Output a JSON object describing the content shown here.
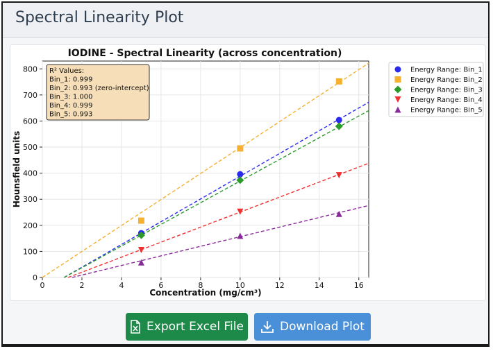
{
  "header": {
    "title": "Spectral Linearity Plot"
  },
  "buttons": {
    "export_label": "Export Excel File",
    "download_label": "Download Plot"
  },
  "icons": {
    "export": "excel-file-icon",
    "download": "download-icon"
  },
  "chart_data": {
    "type": "scatter",
    "title": "IODINE - Spectral Linearity (across concentration)",
    "xlabel": "Concentration (mg/cm³)",
    "ylabel": "Hounsfield units",
    "xlim": [
      0,
      16.5
    ],
    "ylim": [
      0,
      830
    ],
    "xticks": [
      0,
      2,
      4,
      6,
      8,
      10,
      12,
      14,
      16
    ],
    "yticks": [
      0,
      100,
      200,
      300,
      400,
      500,
      600,
      700,
      800
    ],
    "grid": true,
    "x": [
      5,
      10,
      15
    ],
    "series": [
      {
        "name": "Energy Range: Bin_1",
        "values": [
          170,
          396,
          604
        ],
        "color": "#2a2af0",
        "marker": "circle",
        "fit_line": [
          [
            1.1,
            0
          ],
          [
            16.5,
            672
          ]
        ]
      },
      {
        "name": "Energy Range: Bin_2",
        "values": [
          218,
          495,
          752
        ],
        "color": "#f5b030",
        "marker": "square",
        "fit_line": [
          [
            0,
            0
          ],
          [
            16.5,
            822
          ]
        ]
      },
      {
        "name": "Energy Range: Bin_3",
        "values": [
          162,
          373,
          580
        ],
        "color": "#2a9a2a",
        "marker": "diamond",
        "fit_line": [
          [
            1.1,
            0
          ],
          [
            16.5,
            640
          ]
        ]
      },
      {
        "name": "Energy Range: Bin_4",
        "values": [
          105,
          252,
          392
        ],
        "color": "#f03030",
        "marker": "triangle-down",
        "fit_line": [
          [
            1.3,
            0
          ],
          [
            16.5,
            438
          ]
        ]
      },
      {
        "name": "Energy Range: Bin_5",
        "values": [
          58,
          160,
          244
        ],
        "color": "#8a2a9a",
        "marker": "triangle-up",
        "fit_line": [
          [
            1.5,
            0
          ],
          [
            16.5,
            276
          ]
        ]
      }
    ],
    "legend_position": "right",
    "annotation": {
      "title": "R² Values:",
      "lines": [
        "Bin_1: 0.999",
        "Bin_2: 0.993 (zero-intercept)",
        "Bin_3: 1.000",
        "Bin_4: 0.999",
        "Bin_5: 0.993"
      ]
    }
  }
}
